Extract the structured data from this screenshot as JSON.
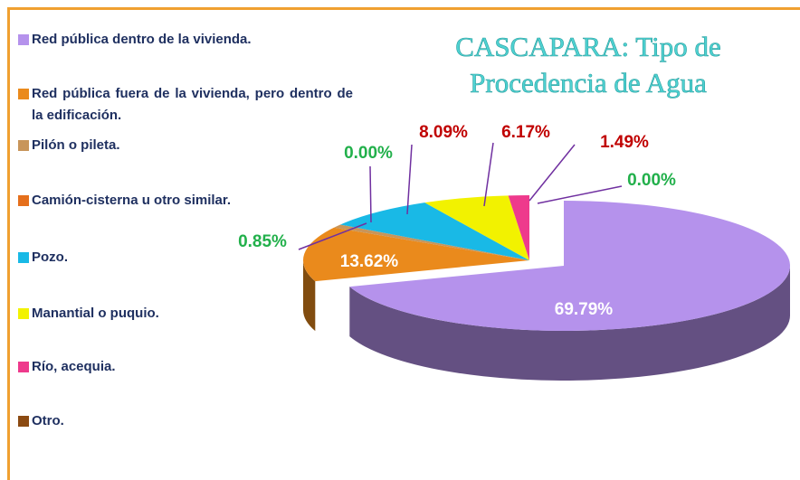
{
  "chart_data": {
    "type": "pie3d",
    "title": "CASCAPARA: Tipo de Procedencia de Agua",
    "categories": [
      "Red pública dentro de la vivienda.",
      "Red pública fuera de la vivienda, pero dentro de la edificación.",
      "Pilón o pileta.",
      "Camión-cisterna u otro similar.",
      "Pozo.",
      "Manantial o puquio.",
      "Río, acequia.",
      "Otro."
    ],
    "values": [
      69.79,
      13.62,
      0.85,
      0.0,
      8.09,
      6.17,
      1.49,
      0.0
    ],
    "value_labels": [
      "69.79%",
      "13.62%",
      "0.85%",
      "0.00%",
      "8.09%",
      "6.17%",
      "1.49%",
      "0.00%"
    ],
    "colors": [
      "#b592ec",
      "#ea8a1c",
      "#c8955a",
      "#e56f1c",
      "#19b9e6",
      "#f2f200",
      "#ee3a8c",
      "#8b4a12"
    ],
    "label_colors": [
      "#ffffff",
      "#ffffff",
      "#22b04b",
      "#22b04b",
      "#c00000",
      "#c00000",
      "#c00000",
      "#22b04b"
    ],
    "legend": "left"
  }
}
